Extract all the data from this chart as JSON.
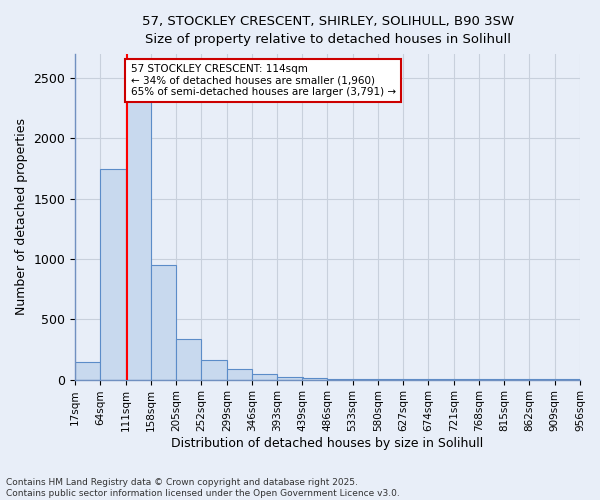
{
  "title_line1": "57, STOCKLEY CRESCENT, SHIRLEY, SOLIHULL, B90 3SW",
  "title_line2": "Size of property relative to detached houses in Solihull",
  "xlabel": "Distribution of detached houses by size in Solihull",
  "ylabel": "Number of detached properties",
  "bin_edges": [
    17,
    64,
    111,
    158,
    205,
    252,
    299,
    346,
    393,
    439,
    486,
    533,
    580,
    627,
    674,
    721,
    768,
    815,
    862,
    909,
    956
  ],
  "bar_heights": [
    150,
    1750,
    2400,
    950,
    340,
    160,
    90,
    50,
    20,
    12,
    8,
    5,
    4,
    3,
    3,
    2,
    2,
    1,
    1,
    1
  ],
  "bar_color": "#c8d9ee",
  "bar_edge_color": "#5b8cc8",
  "red_line_x": 114,
  "ylim": [
    0,
    2700
  ],
  "yticks": [
    0,
    500,
    1000,
    1500,
    2000,
    2500
  ],
  "annotation_title": "57 STOCKLEY CRESCENT: 114sqm",
  "annotation_line2": "← 34% of detached houses are smaller (1,960)",
  "annotation_line3": "65% of semi-detached houses are larger (3,791) →",
  "annotation_box_color": "#ffffff",
  "annotation_box_edge_color": "#cc0000",
  "footnote_line1": "Contains HM Land Registry data © Crown copyright and database right 2025.",
  "footnote_line2": "Contains public sector information licensed under the Open Government Licence v3.0.",
  "background_color": "#e8eef8",
  "plot_bg_color": "#e8eef8",
  "grid_color": "#c8d0dc",
  "spine_color": "#7090c0"
}
